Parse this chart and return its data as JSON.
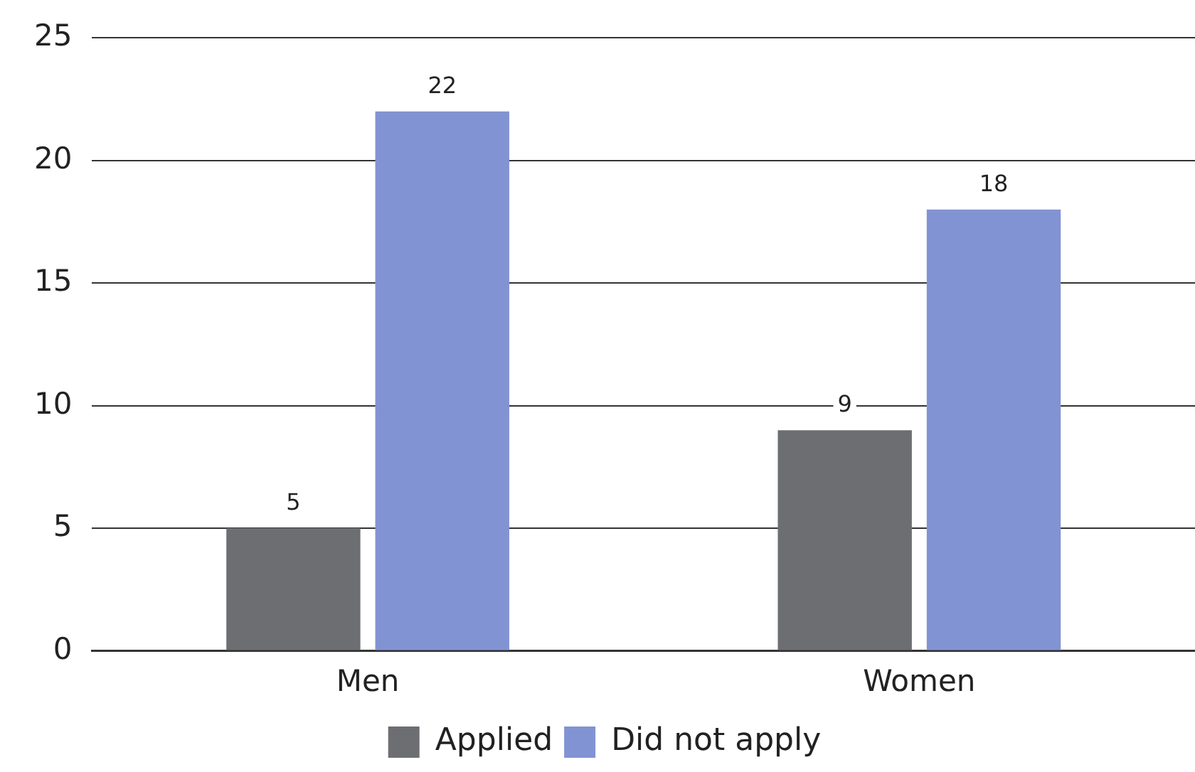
{
  "chart_data": {
    "type": "bar",
    "categories": [
      "Men",
      "Women"
    ],
    "series": [
      {
        "name": "Applied",
        "color": "#6d6e72",
        "values": [
          5,
          9
        ]
      },
      {
        "name": "Did not apply",
        "color": "#8293d3",
        "values": [
          22,
          18
        ]
      }
    ],
    "ylim": [
      0,
      25
    ],
    "yticks": [
      0,
      5,
      10,
      15,
      20,
      25
    ],
    "grid": "y",
    "legend": "bottom",
    "data_labels": true
  }
}
